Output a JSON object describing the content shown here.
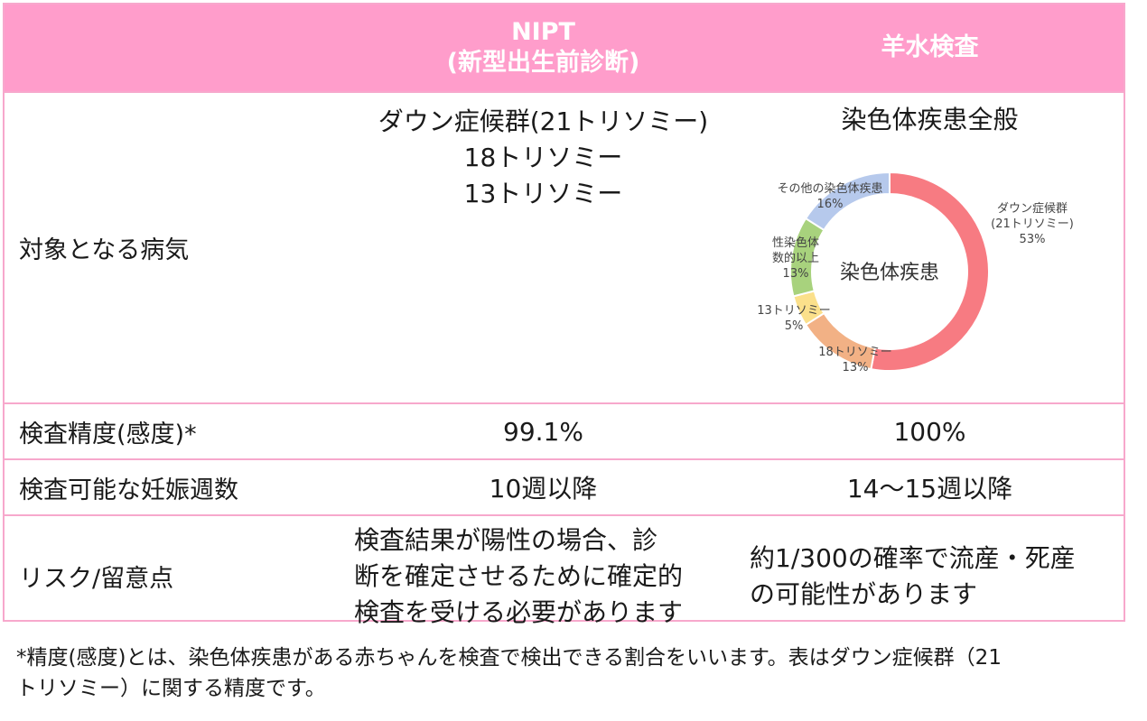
{
  "header": {
    "nipt_line1": "NIPT",
    "nipt_line2": "(新型出生前診断)",
    "amnio": "羊水検査"
  },
  "rows": {
    "disease": {
      "label": "対象となる病気",
      "nipt": [
        "ダウン症候群(21トリソミー)",
        "18トリソミー",
        "13トリソミー"
      ],
      "amnio": "染色体疾患全般"
    },
    "accuracy": {
      "label": "検査精度(感度)*",
      "nipt": "99.1%",
      "amnio": "100%"
    },
    "weeks": {
      "label": "検査可能な妊娠週数",
      "nipt": "10週以降",
      "amnio": "14～15週以降"
    },
    "risk": {
      "label": "リスク/留意点",
      "nipt": [
        "検査結果が陽性の場合、診",
        "断を確定させるために確定的",
        "検査を受ける必要があります"
      ],
      "amnio": [
        "約1/300の確率で流産・死産",
        "の可能性があります"
      ]
    }
  },
  "footnote": [
    "*精度(感度)とは、染色体疾患がある赤ちゃんを検査で検出できる割合をいいます。表はダウン症候群（21",
    "トリソミー）に関する精度です。"
  ],
  "colors": {
    "header_bg": "#ff9dcb",
    "border": "#f7a8cc",
    "down": "#f77b82",
    "t18": "#f2b185",
    "t13": "#fbe08b",
    "sex": "#a8d27d",
    "other": "#b6c9ec"
  },
  "chart_data": {
    "type": "pie",
    "title": "染色体疾患",
    "slices": [
      {
        "label": "ダウン症候群(21トリソミー)",
        "value": 53,
        "label_value": "53%",
        "color": "#f77b82"
      },
      {
        "label": "18トリソミー",
        "value": 13,
        "label_value": "13%",
        "color": "#f2b185"
      },
      {
        "label": "13トリソミー",
        "value": 5,
        "label_value": "5%",
        "color": "#fbe08b"
      },
      {
        "label": "性染色体数的以上",
        "value": 13,
        "label_value": "13%",
        "color": "#a8d27d"
      },
      {
        "label": "その他の染色体疾患",
        "value": 16,
        "label_value": "16%",
        "color": "#b6c9ec"
      }
    ],
    "slice_label_lines": [
      [
        "ダウン症候群",
        "(21トリソミー)",
        "53%"
      ],
      [
        "18トリソミー",
        "13%"
      ],
      [
        "13トリソミー",
        "5%"
      ],
      [
        "性染色体",
        "数的以上",
        "13%"
      ],
      [
        "その他の染色体疾患",
        "16%"
      ]
    ]
  }
}
